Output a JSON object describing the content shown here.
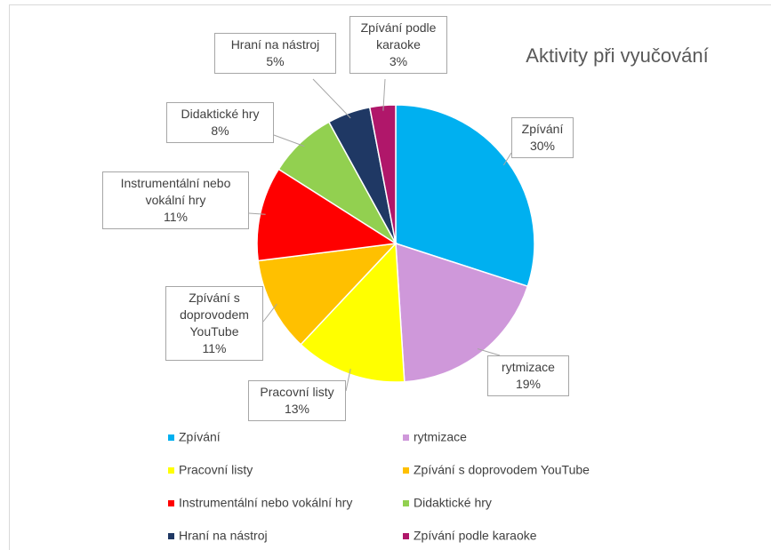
{
  "chart_data": {
    "type": "pie",
    "title": "Aktivity při vyučování",
    "categories": [
      "Zpívání",
      "rytmizace",
      "Pracovní listy",
      "Zpívání s doprovodem YouTube",
      "Instrumentální nebo vokální hry",
      "Didaktické hry",
      "Hraní na nástroj",
      "Zpívání podle karaoke"
    ],
    "values": [
      30,
      19,
      13,
      11,
      11,
      8,
      5,
      3
    ],
    "value_labels": [
      "30%",
      "19%",
      "13%",
      "11%",
      "11%",
      "8%",
      "5%",
      "3%"
    ],
    "colors": [
      "#00b0f0",
      "#cf98da",
      "#ffff00",
      "#ffc000",
      "#ff0000",
      "#92d050",
      "#1f3864",
      "#b0176a"
    ],
    "legend": "bottom"
  }
}
